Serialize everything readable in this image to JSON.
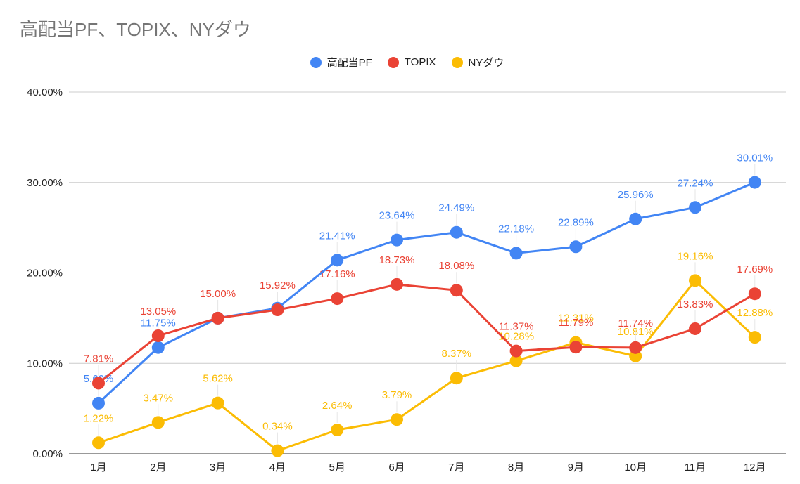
{
  "chart_data": {
    "type": "line",
    "title": "高配当PF、TOPIX、NYダウ",
    "xlabel": "",
    "ylabel": "",
    "categories": [
      "1月",
      "2月",
      "3月",
      "4月",
      "5月",
      "6月",
      "7月",
      "8月",
      "9月",
      "10月",
      "11月",
      "12月"
    ],
    "ylim": [
      0,
      40
    ],
    "yticks": [
      "0.00%",
      "10.00%",
      "20.00%",
      "30.00%",
      "40.00%"
    ],
    "ytick_values": [
      0,
      10,
      20,
      30,
      40
    ],
    "grid": true,
    "legend_position": "top-center",
    "series": [
      {
        "name": "高配当PF",
        "color": "#4285f4",
        "values": [
          5.6,
          11.75,
          15.0,
          16.1,
          21.41,
          23.64,
          24.49,
          22.18,
          22.89,
          25.96,
          27.24,
          30.01
        ],
        "labels": [
          "5.60%",
          "11.75%",
          "",
          "",
          "21.41%",
          "23.64%",
          "24.49%",
          "22.18%",
          "22.89%",
          "25.96%",
          "27.24%",
          "30.01%"
        ]
      },
      {
        "name": "TOPIX",
        "color": "#ea4335",
        "values": [
          7.81,
          13.05,
          15.0,
          15.92,
          17.16,
          18.73,
          18.08,
          11.37,
          11.79,
          11.74,
          13.83,
          17.69
        ],
        "labels": [
          "7.81%",
          "13.05%",
          "15.00%",
          "15.92%",
          "17.16%",
          "18.73%",
          "18.08%",
          "11.37%",
          "11.79%",
          "11.74%",
          "13.83%",
          "17.69%"
        ]
      },
      {
        "name": "NYダウ",
        "color": "#fbbc04",
        "values": [
          1.22,
          3.47,
          5.62,
          0.34,
          2.64,
          3.79,
          8.37,
          10.28,
          12.31,
          10.81,
          19.16,
          12.88
        ],
        "labels": [
          "1.22%",
          "3.47%",
          "5.62%",
          "0.34%",
          "2.64%",
          "3.79%",
          "8.37%",
          "10.28%",
          "12.31%",
          "10.81%",
          "19.16%",
          "12.88%"
        ]
      }
    ]
  }
}
